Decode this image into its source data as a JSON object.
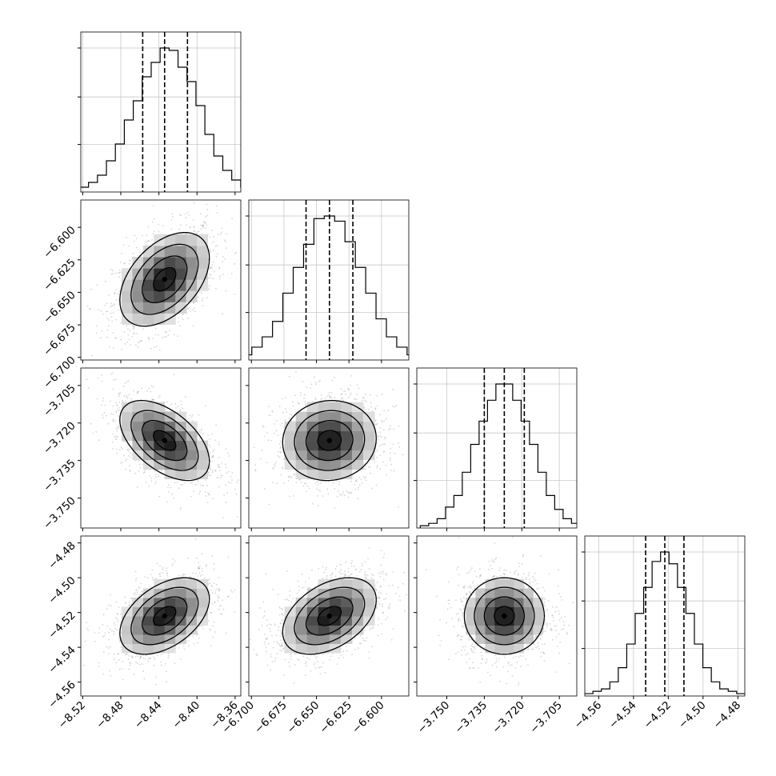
{
  "chart_data": {
    "type": "corner",
    "parameters": [
      {
        "xticks": [
          "−8.52",
          "−8.48",
          "−8.44",
          "−8.40",
          "−8.36"
        ],
        "xtick_values": [
          -8.52,
          -8.48,
          -8.44,
          -8.4,
          -8.36
        ],
        "range": [
          -8.522,
          -8.354
        ]
      },
      {
        "xticks": [
          "−6.700",
          "−6.675",
          "−6.650",
          "−6.625",
          "−6.600"
        ],
        "xtick_values": [
          -6.7,
          -6.675,
          -6.65,
          -6.625,
          -6.6
        ],
        "yticks": [
          "−6.600",
          "−6.625",
          "−6.650",
          "−6.675",
          "−6.700"
        ],
        "range": [
          -6.702,
          -6.579
        ]
      },
      {
        "xticks": [
          "−3.750",
          "−3.735",
          "−3.720",
          "−3.705"
        ],
        "xtick_values": [
          -3.75,
          -3.735,
          -3.72,
          -3.705
        ],
        "yticks": [
          "−3.705",
          "−3.720",
          "−3.735",
          "−3.750"
        ],
        "range": [
          -3.762,
          -3.698
        ]
      },
      {
        "xticks": [
          "−4.56",
          "−4.54",
          "−4.52",
          "−4.50",
          "−4.48"
        ],
        "xtick_values": [
          -4.56,
          -4.54,
          -4.52,
          -4.5,
          -4.48
        ],
        "yticks": [
          "−4.48",
          "−4.50",
          "−4.52",
          "−4.54",
          "−4.56"
        ],
        "range": [
          -4.568,
          -4.476
        ]
      }
    ],
    "quantiles": [
      [
        -8.457,
        -8.434,
        -8.41
      ],
      [
        -6.658,
        -6.64,
        -6.622
      ],
      [
        -3.735,
        -3.727,
        -3.719
      ],
      [
        -4.533,
        -4.522,
        -4.511
      ]
    ],
    "histograms": [
      [
        1,
        2,
        4,
        7,
        13,
        20,
        30,
        38,
        48,
        54,
        60,
        59,
        52,
        46,
        36,
        24,
        15,
        9,
        5,
        2,
        1
      ],
      [
        1,
        2,
        5,
        9,
        15,
        26,
        36,
        45,
        55,
        56,
        54,
        46,
        36,
        26,
        16,
        9,
        5,
        2,
        1
      ],
      [
        1,
        2,
        4,
        9,
        14,
        24,
        36,
        46,
        55,
        62,
        62,
        55,
        46,
        36,
        24,
        14,
        8,
        4,
        2,
        1
      ],
      [
        1,
        2,
        3,
        6,
        12,
        22,
        35,
        46,
        57,
        61,
        56,
        46,
        35,
        22,
        12,
        6,
        3,
        2,
        1
      ]
    ],
    "correlations": [
      [
        1.0,
        0.45,
        -0.52,
        0.45
      ],
      [
        0.45,
        1.0,
        0.05,
        0.42
      ],
      [
        -0.52,
        0.05,
        1.0,
        0.0
      ],
      [
        0.45,
        0.42,
        0.0,
        1.0
      ]
    ],
    "grid": true
  }
}
